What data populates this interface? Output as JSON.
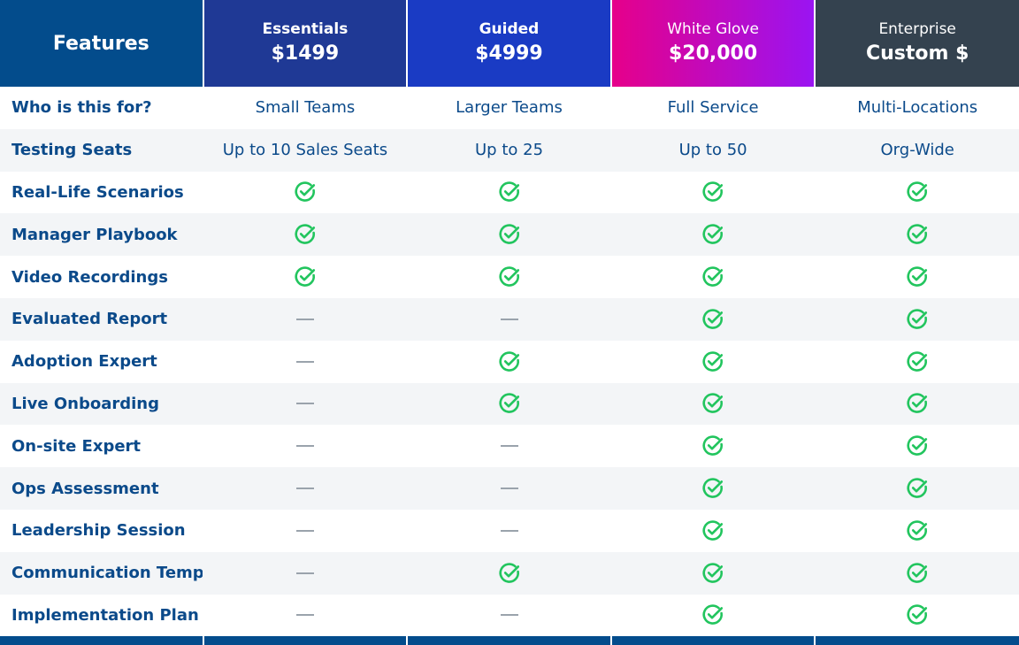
{
  "header": {
    "features_title": "Features",
    "plans": [
      {
        "name": "Essentials",
        "price": "$1499"
      },
      {
        "name": "Guided",
        "price": "$4999"
      },
      {
        "name": "White Glove",
        "price": "$20,000"
      },
      {
        "name": "Enterprise",
        "price": "Custom $"
      }
    ]
  },
  "rows": [
    {
      "label": "Who is this for?",
      "values": [
        "Small Teams",
        "Larger Teams",
        "Full Service",
        "Multi-Locations"
      ]
    },
    {
      "label": "Testing Seats",
      "values": [
        "Up to 10 Sales Seats",
        "Up to 25",
        "Up to 50",
        "Org-Wide"
      ]
    },
    {
      "label": "Real-Life Scenarios",
      "values": [
        "check",
        "check",
        "check",
        "check"
      ]
    },
    {
      "label": "Manager Playbook",
      "values": [
        "check",
        "check",
        "check",
        "check"
      ]
    },
    {
      "label": "Video Recordings",
      "values": [
        "check",
        "check",
        "check",
        "check"
      ]
    },
    {
      "label": "Evaluated Report",
      "values": [
        "dash",
        "dash",
        "check",
        "check"
      ]
    },
    {
      "label": "Adoption Expert",
      "values": [
        "dash",
        "check",
        "check",
        "check"
      ]
    },
    {
      "label": "Live Onboarding",
      "values": [
        "dash",
        "check",
        "check",
        "check"
      ]
    },
    {
      "label": "On-site Expert",
      "values": [
        "dash",
        "dash",
        "check",
        "check"
      ]
    },
    {
      "label": "Ops Assessment",
      "values": [
        "dash",
        "dash",
        "check",
        "check"
      ]
    },
    {
      "label": "Leadership Session",
      "values": [
        "dash",
        "dash",
        "check",
        "check"
      ]
    },
    {
      "label": "Communication Templ",
      "values": [
        "dash",
        "check",
        "check",
        "check"
      ]
    },
    {
      "label": "Implementation Plan",
      "values": [
        "dash",
        "dash",
        "check",
        "check"
      ]
    }
  ],
  "colors": {
    "brand_blue": "#034c8c",
    "text_blue": "#0b4a8a",
    "check_green": "#22c55e",
    "dash_gray": "#9aa3ac",
    "row_alt": "#f3f5f7"
  }
}
